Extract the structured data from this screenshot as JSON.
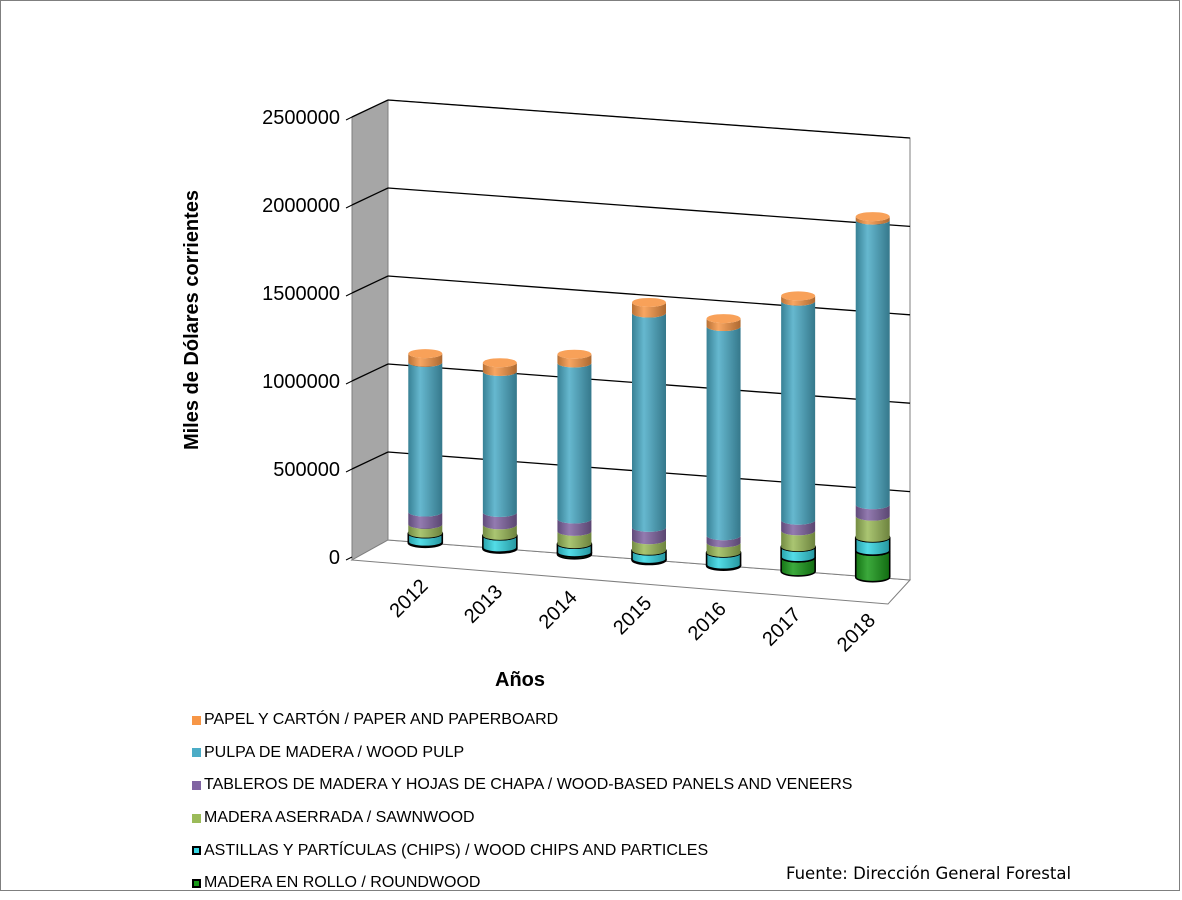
{
  "chart_data": {
    "type": "bar",
    "stacked": true,
    "style": "3d-cylinder",
    "categories": [
      "2012",
      "2013",
      "2014",
      "2015",
      "2016",
      "2017",
      "2018"
    ],
    "xlabel": "Años",
    "ylabel": "Miles de Dólares corrientes",
    "ylim": [
      0,
      2500000
    ],
    "yticks": [
      "0",
      "500000",
      "1000000",
      "1500000",
      "2000000",
      "2500000"
    ],
    "grid": true,
    "legend_position": "bottom",
    "series": [
      {
        "name": "MADERA EN ROLLO / ROUNDWOOD",
        "color": "#1a9a1a",
        "values": [
          5000,
          5000,
          10000,
          5000,
          5000,
          80000,
          150000
        ]
      },
      {
        "name": "ASTILLAS Y PARTÍCULAS (CHIPS) / WOOD CHIPS AND PARTICLES",
        "color": "#35d6e3",
        "values": [
          50000,
          70000,
          50000,
          50000,
          70000,
          60000,
          75000
        ]
      },
      {
        "name": "MADERA ASERRADA / SAWNWOOD",
        "color": "#9bbb59",
        "values": [
          50000,
          60000,
          70000,
          60000,
          55000,
          90000,
          120000
        ]
      },
      {
        "name": "TABLEROS DE MADERA Y HOJAS DE CHAPA / WOOD-BASED PANELS AND VENEERS",
        "color": "#8064a2",
        "values": [
          70000,
          70000,
          70000,
          70000,
          40000,
          60000,
          65000
        ]
      },
      {
        "name": "PULPA DE MADERA / WOOD PULP",
        "color": "#4bacc6",
        "values": [
          850000,
          800000,
          885000,
          1215000,
          1185000,
          1240000,
          1610000
        ]
      },
      {
        "name": "PAPEL Y CARTÓN / PAPER AND PAPERBOARD",
        "color": "#f79646",
        "values": [
          50000,
          50000,
          50000,
          60000,
          45000,
          30000,
          20000
        ]
      }
    ]
  },
  "legend": [
    {
      "label": "PAPEL Y CARTÓN / PAPER AND PAPERBOARD",
      "color": "#f79646",
      "outline": "#f79646"
    },
    {
      "label": "PULPA DE MADERA / WOOD PULP",
      "color": "#4bacc6",
      "outline": "#4bacc6"
    },
    {
      "label": "TABLEROS DE MADERA Y HOJAS DE CHAPA / WOOD-BASED PANELS AND VENEERS",
      "color": "#8064a2",
      "outline": "#8064a2"
    },
    {
      "label": "MADERA ASERRADA / SAWNWOOD",
      "color": "#9bbb59",
      "outline": "#9bbb59"
    },
    {
      "label": "ASTILLAS Y PARTÍCULAS (CHIPS) / WOOD CHIPS AND PARTICLES",
      "color": "#35d6e3",
      "outline": "#000000"
    },
    {
      "label": "MADERA EN ROLLO / ROUNDWOOD",
      "color": "#1a9a1a",
      "outline": "#000000"
    }
  ],
  "source": "Fuente: Dirección General Forestal"
}
